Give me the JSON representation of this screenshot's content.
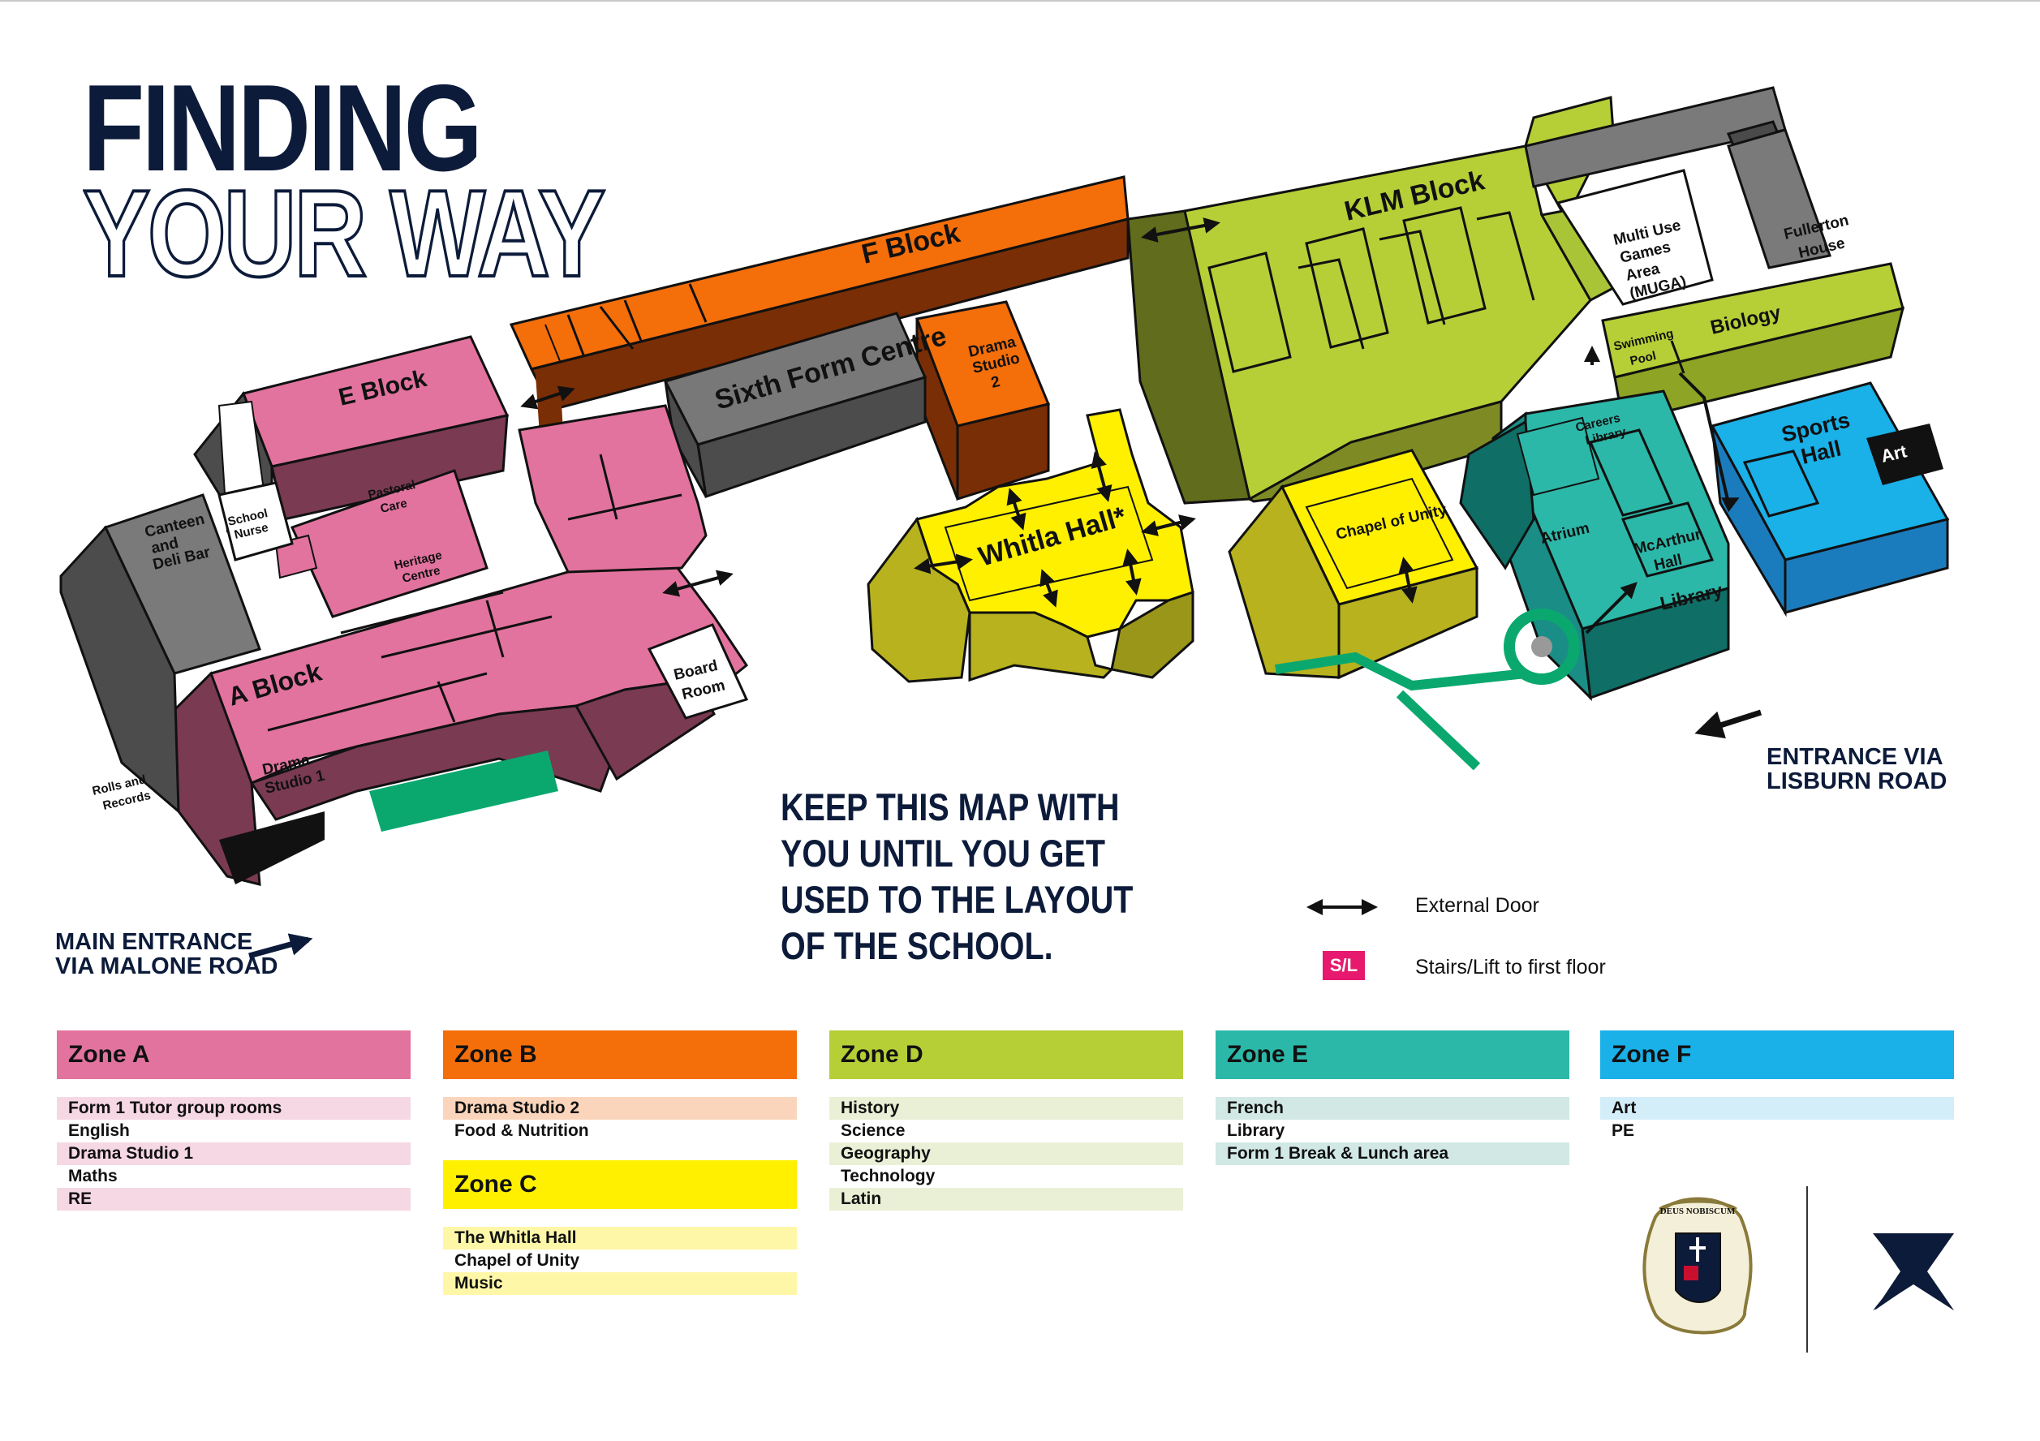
{
  "title": {
    "line1": "FINDING",
    "line2": "YOUR WAY"
  },
  "map_labels": {
    "f_block": "F Block",
    "klm_block": "KLM Block",
    "e_block": "E Block",
    "sixth_form": "Sixth Form Centre",
    "drama2": [
      "Drama",
      "Studio",
      "2"
    ],
    "whitla": "Whitla Hall*",
    "muga": [
      "Multi Use",
      "Games",
      "Area",
      "(MUGA)"
    ],
    "fullerton": [
      "Fullerton",
      "House"
    ],
    "biology": "Biology",
    "pool": [
      "Swimming",
      "Pool"
    ],
    "careers": [
      "Careers",
      "Library"
    ],
    "sports": [
      "Sports",
      "Hall"
    ],
    "art": "Art",
    "atrium": "Atrium",
    "mcarthur": [
      "McArthur",
      "Hall"
    ],
    "library": "Library",
    "chapel": "Chapel of Unity",
    "canteen": [
      "Canteen",
      "and",
      "Deli Bar"
    ],
    "nurse": [
      "School",
      "Nurse"
    ],
    "pastoral": [
      "Pastoral",
      "Care"
    ],
    "heritage": [
      "Heritage",
      "Centre"
    ],
    "a_block": "A Block",
    "board": [
      "Board",
      "Room"
    ],
    "drama1": [
      "Drama",
      "Studio 1"
    ],
    "rolls": [
      "Rolls and",
      "Records"
    ]
  },
  "keep_text": "KEEP THIS MAP WITH YOU UNTIL YOU GET USED TO THE LAYOUT OF THE SCHOOL.",
  "entrances": {
    "lisburn": [
      "ENTRANCE VIA",
      "LISBURN ROAD"
    ],
    "malone": [
      "MAIN ENTRANCE",
      "VIA MALONE ROAD"
    ]
  },
  "legend": {
    "external_door": "External Door",
    "stairs_badge": "S/L",
    "stairs": "Stairs/Lift to first floor"
  },
  "zones": [
    {
      "name": "Zone A",
      "color": "#e2739e",
      "light": "#f6d8e4",
      "items": [
        "Form 1 Tutor group rooms",
        "English",
        "Drama Studio 1",
        "Maths",
        "RE"
      ]
    },
    {
      "name": "Zone B",
      "color": "#f46e0a",
      "light": "#fbd5bb",
      "items": [
        "Drama Studio 2",
        "Food & Nutrition"
      ]
    },
    {
      "name": "Zone C",
      "color": "#fff000",
      "light": "#fff7a8",
      "items": [
        "The Whitla Hall",
        "Chapel of Unity",
        "Music"
      ]
    },
    {
      "name": "Zone D",
      "color": "#b6cf37",
      "light": "#eaf0d6",
      "items": [
        "History",
        "Science",
        "Geography",
        "Technology",
        "Latin"
      ]
    },
    {
      "name": "Zone E",
      "color": "#2cb8a8",
      "light": "#d1e8e4",
      "items": [
        "French",
        "Library",
        "Form 1 Break & Lunch area"
      ]
    },
    {
      "name": "Zone F",
      "color": "#1ab0e8",
      "light": "#d4eef9",
      "items": [
        "Art",
        "PE"
      ]
    }
  ],
  "crest_motto": "DEUS NOBISCUM"
}
